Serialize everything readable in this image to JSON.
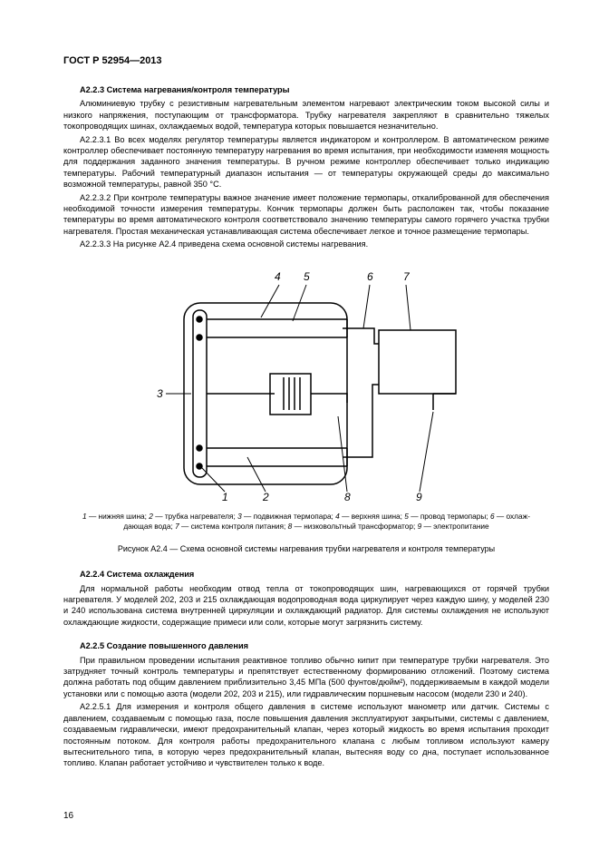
{
  "header": "ГОСТ Р 52954—2013",
  "s223": {
    "title": "А2.2.3 Система нагревания/контроля температуры",
    "p1_pre": "Алюминиевую трубку с резистивным нагревательным элементом нагревают электрическим током высокой силы и низкого напряжения, поступающим от трансформатора. Трубку нагревателя закрепляют в сравнительно тяжелых токопроводящих шинах, охлаждаемых водой, температура которых повышается незначительно.",
    "p2_num": "А2.2.3.1",
    "p2": "Во всех моделях регулятор температуры является индикатором и контроллером. В автоматическом режиме контроллер обеспечивает постоянную температуру нагревания во время испытания, при необходимости изменяя мощность для поддержания заданного значения температуры. В ручном режиме контроллер обеспечивает только индикацию температуры. Рабочий температурный диапазон испытания — от температуры окружающей среды до максимально возможной температуры, равной 350 °С.",
    "p3_num": "А2.2.3.2",
    "p3": "При контроле температуры важное значение имеет положение термопары, откалиброванной для обеспечения необходимой точности измерения температуры. Кончик термопары должен быть расположен так, чтобы показание температуры во время автоматического контроля соответствовало значению температуры самого горячего участка трубки нагревателя. Простая механическая устанавливающая система обеспечивает легкое и точное размещение термопары.",
    "p4_num": "А2.2.3.3",
    "p4": "На рисунке А2.4 приведена схема основной системы нагревания."
  },
  "fig": {
    "labels": {
      "1": "1",
      "2": "2",
      "3": "3",
      "4": "4",
      "5": "5",
      "6": "6",
      "7": "7",
      "8": "8",
      "9": "9"
    },
    "legend_items": [
      {
        "n": "1",
        "t": "нижняя шина"
      },
      {
        "n": "2",
        "t": "трубка нагревателя"
      },
      {
        "n": "3",
        "t": "подвижная термопара"
      },
      {
        "n": "4",
        "t": "верхняя шина"
      },
      {
        "n": "5",
        "t": "провод термопары"
      },
      {
        "n": "6",
        "t": "охлаж­дающая вода"
      },
      {
        "n": "7",
        "t": "система контроля питания"
      },
      {
        "n": "8",
        "t": "низковольтный трансформатор"
      },
      {
        "n": "9",
        "t": "электропитание"
      }
    ],
    "caption": "Рисунок А2.4 — Схема основной системы нагревания трубки нагревателя и контроля температуры",
    "stroke": "#000000",
    "label_font": 12
  },
  "s224": {
    "title": "А2.2.4 Система охлаждения",
    "p1": "Для нормальной работы необходим отвод тепла от токопроводящих шин, нагревающихся от горячей трубки нагревателя. У моделей 202, 203 и 215 охлаждающая водопроводная вода циркулирует через каждую шину, у моде­лей 230 и 240 использована система внутренней циркуляции и охлаждающий радиатор. Для системы охлаждения не используют охлаждающие жидкости, содержащие примеси или соли, которые могут загрязнить систему."
  },
  "s225": {
    "title": "А2.2.5 Создание повышенного давления",
    "p1": "При правильном проведении испытания реактивное топливо обычно кипит при температуре трубки нагрева­теля. Это затрудняет точный контроль температуры и препятствует естественному формированию отложений. Поэтому система должна работать под общим давлением приблизительно 3,45 МПа (500 фунтов/дюйм²), поддер­живаемым в каждой модели установки или с помощью азота (модели 202, 203 и 215), или гидравлическим поршне­вым насосом (модели 230 и 240).",
    "p2_num": "А2.2.5.1",
    "p2": "Для измерения и контроля общего давления в системе используют манометр или датчик. Системы с давлением, создаваемым с помощью газа, после повышения давления эксплуатируют закрытыми, системы с дав­лением, создаваемым гидравлически, имеют предохранительный клапан, через который жидкость во время испы­тания проходит постоянным потоком. Для контроля работы предохранительного клапана с любым топливом используют камеру вытеснительного типа, в которую через предохранительный клапан, вытесняя воду со дна, поступает использованное топливо. Клапан работает устойчиво и чувствителен только к воде."
  },
  "page_num": "16"
}
